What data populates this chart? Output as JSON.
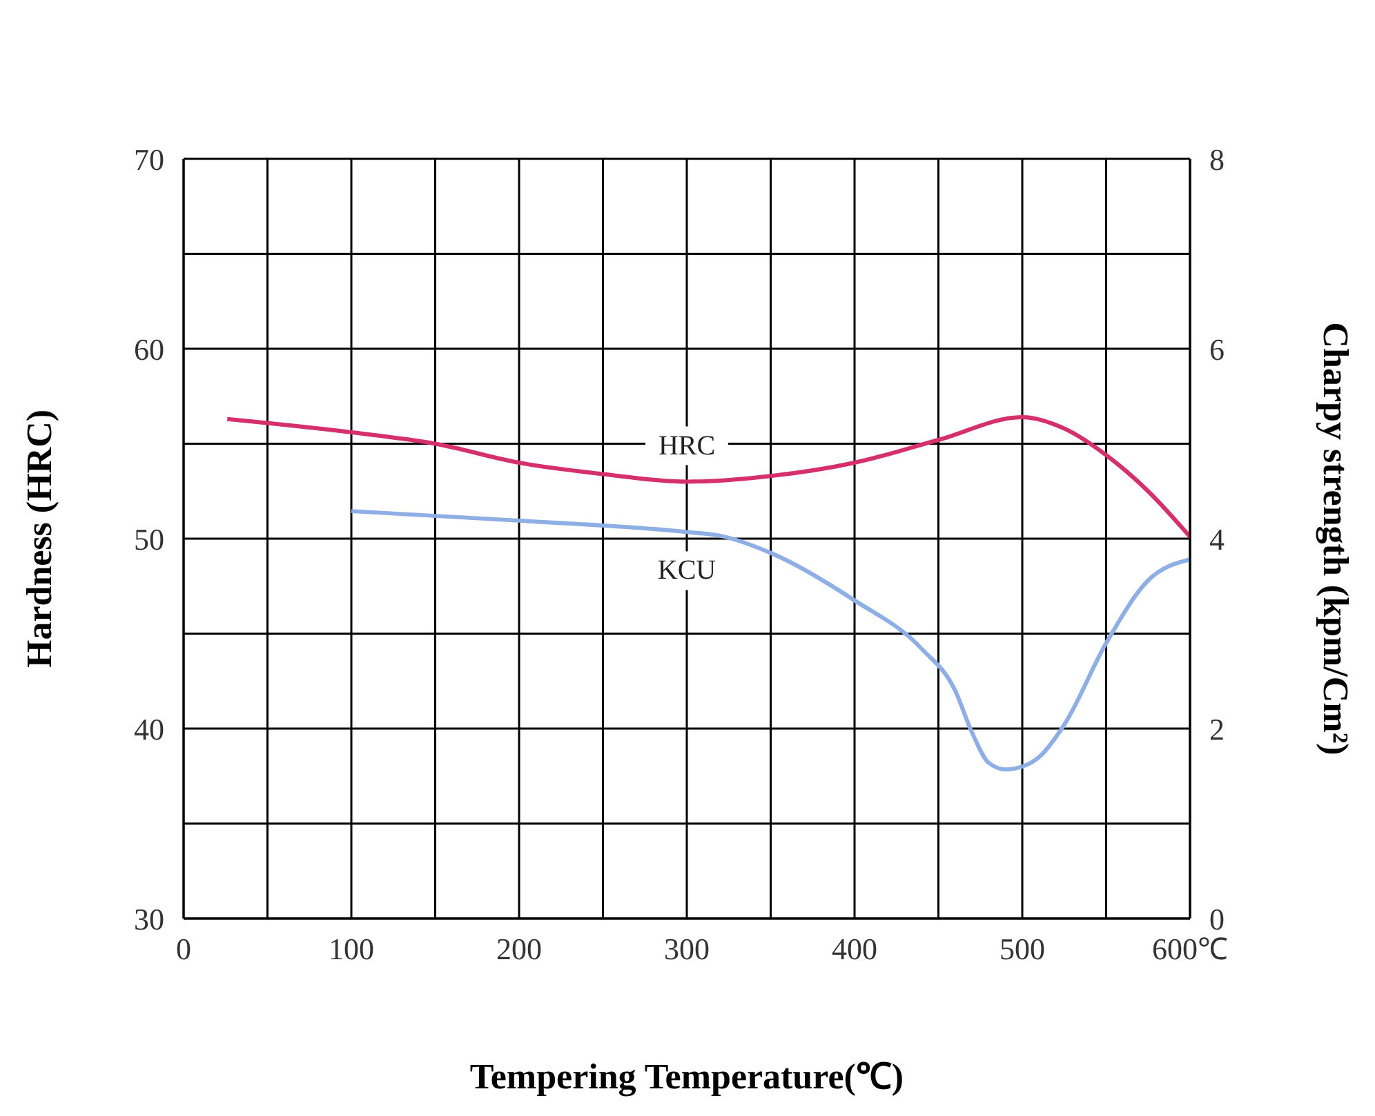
{
  "chart_data": {
    "type": "line",
    "xlabel": "Tempering Temperature(℃)",
    "ylabel": "Hardness (HRC)",
    "y2label": "Charpy strength (kpm/Cm²)",
    "xlim": [
      0,
      600
    ],
    "xticks": [
      0,
      {
        "value": 50,
        "label": null
      },
      100,
      {
        "value": 150,
        "label": null
      },
      200,
      {
        "value": 250,
        "label": null
      },
      300,
      {
        "value": 350,
        "label": null
      },
      400,
      {
        "value": 450,
        "label": null
      },
      500,
      {
        "value": 550,
        "label": null
      },
      {
        "value": 600,
        "label": "600℃"
      }
    ],
    "ylim": [
      30,
      70
    ],
    "yticks": [
      30,
      {
        "value": 35,
        "label": null
      },
      40,
      {
        "value": 45,
        "label": null
      },
      50,
      {
        "value": 55,
        "label": null
      },
      60,
      {
        "value": 65,
        "label": null
      },
      70
    ],
    "y2lim": [
      0,
      8
    ],
    "y2ticks": [
      0,
      2,
      4,
      6,
      8
    ],
    "grid": true,
    "legend": false,
    "marker": "none",
    "line_style": "solid",
    "series": [
      {
        "name": "HRC",
        "color": "#d6306a",
        "x": [
          26,
          100,
          150,
          200,
          250,
          300,
          350,
          400,
          450,
          500,
          525,
          550,
          575,
          600
        ],
        "values": [
          56.3,
          55.6,
          55.0,
          54.0,
          53.4,
          53.0,
          53.3,
          54.0,
          55.2,
          56.4,
          55.8,
          54.4,
          52.5,
          50.1
        ]
      },
      {
        "name": "KCU",
        "color": "#8eaee6",
        "axis": "y2",
        "x": [
          100,
          200,
          300,
          320,
          350,
          400,
          440,
          460,
          470,
          480,
          490,
          500,
          510,
          525,
          550,
          575,
          600
        ],
        "values": [
          4.29,
          4.19,
          4.07,
          4.03,
          3.85,
          3.35,
          2.84,
          2.4,
          1.96,
          1.64,
          1.57,
          1.6,
          1.7,
          2.04,
          2.9,
          3.56,
          3.78
        ]
      }
    ]
  }
}
